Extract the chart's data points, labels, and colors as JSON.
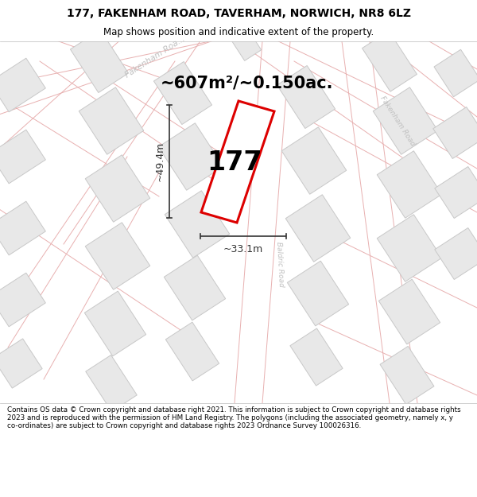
{
  "title_line1": "177, FAKENHAM ROAD, TAVERHAM, NORWICH, NR8 6LZ",
  "title_line2": "Map shows position and indicative extent of the property.",
  "area_text": "~607m²/~0.150ac.",
  "dimension_width": "~33.1m",
  "dimension_height": "~49.4m",
  "plot_number": "177",
  "footer": "Contains OS data © Crown copyright and database right 2021. This information is subject to Crown copyright and database rights 2023 and is reproduced with the permission of HM Land Registry. The polygons (including the associated geometry, namely x, y co-ordinates) are subject to Crown copyright and database rights 2023 Ordnance Survey 100026316.",
  "bg_color": "#ffffff",
  "map_bg": "#ffffff",
  "plot_fill": "#ffffff",
  "plot_edge": "#dd0000",
  "road_line_color": "#e8b0b0",
  "road_label_color": "#c0c0c0",
  "building_fill": "#e8e8e8",
  "building_edge": "#c8c8c8",
  "dim_color": "#333333",
  "title_fontsize": 10,
  "subtitle_fontsize": 8.5,
  "area_fontsize": 15,
  "plot_num_fontsize": 24,
  "dim_fontsize": 9,
  "footer_fontsize": 6.3,
  "road_label_fontsize": 7.5
}
